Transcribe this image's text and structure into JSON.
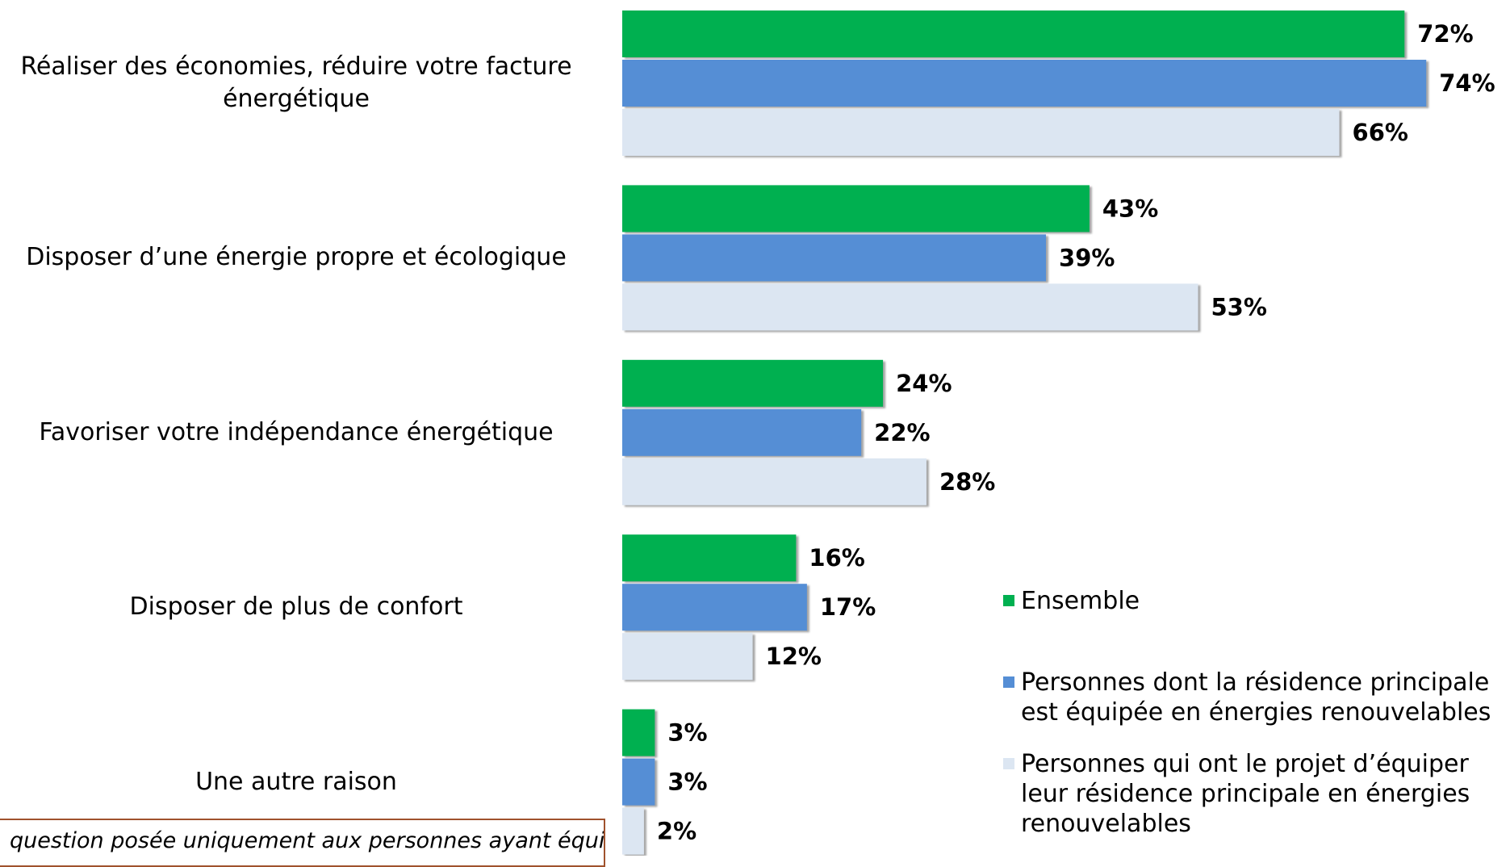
{
  "chart_data": {
    "type": "bar",
    "orientation": "horizontal",
    "categories": [
      "Réaliser des économies, réduire votre facture énergétique",
      "Disposer d’une énergie propre et écologique",
      "Favoriser votre indépendance énergétique",
      "Disposer de plus de confort",
      "Une autre raison"
    ],
    "series": [
      {
        "name": "Ensemble",
        "color": "#00b050",
        "values": [
          72,
          43,
          24,
          16,
          3
        ],
        "value_labels": [
          "72%",
          "43%",
          "24%",
          "16%",
          "3%"
        ]
      },
      {
        "name": "Personnes dont la résidence principale est équipée en énergies renouvelables",
        "color": "#558ed5",
        "values": [
          74,
          39,
          22,
          17,
          3
        ],
        "value_labels": [
          "74%",
          "39%",
          "22%",
          "17%",
          "3%"
        ]
      },
      {
        "name": "Personnes qui ont le projet d’équiper leur résidence principale en énergies renouvelables",
        "color": "#dce6f2",
        "values": [
          66,
          53,
          28,
          12,
          2
        ],
        "value_labels": [
          "66%",
          "53%",
          "28%",
          "12%",
          "2%"
        ]
      }
    ],
    "xlim": [
      0,
      80
    ],
    "legend": "right",
    "note": "question posée uniquement aux personnes ayant équipé"
  }
}
